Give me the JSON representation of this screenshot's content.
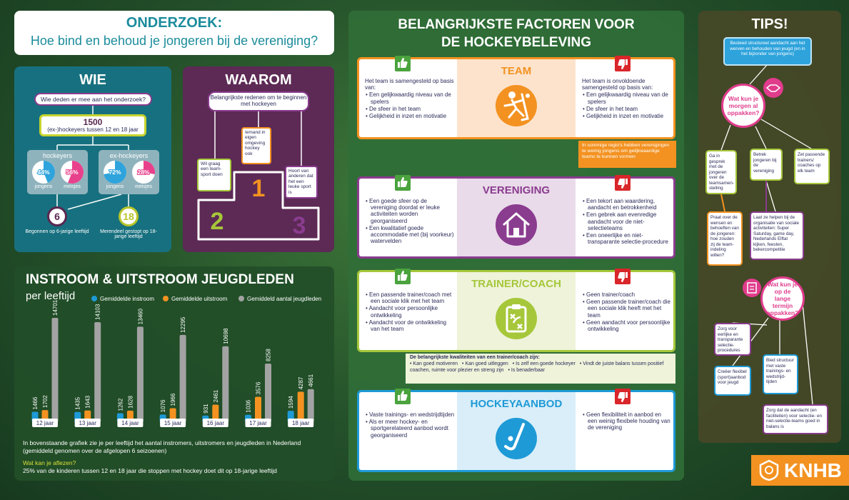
{
  "header": {
    "title": "ONDERZOEK:",
    "subtitle": "Hoe bind en behoud je jongeren bij de vereniging?"
  },
  "wie": {
    "title": "WIE",
    "question": "Wie deden er mee aan het onderzoek?",
    "total": {
      "value": 1500,
      "text": "(ex-)hockeyers tussen 12 en 18 jaar"
    },
    "groups": [
      {
        "title": "hockeyers",
        "stats": [
          {
            "name": "jongens",
            "value": 44,
            "value_label": "44%"
          },
          {
            "name": "meisjes",
            "value": 56,
            "value_label": "56%"
          }
        ]
      },
      {
        "title": "ex-hockeyers",
        "stats": [
          {
            "name": "jongens",
            "value": 72,
            "value_label": "72%"
          },
          {
            "name": "meisjes",
            "value": 28,
            "value_label": "28%"
          }
        ]
      }
    ],
    "ages": [
      {
        "value": 6,
        "text": "Begonnen op 6-jarige leeftijd"
      },
      {
        "value": 18,
        "text": "Merendeel gestopt op 18-jarige leeftijd"
      }
    ]
  },
  "waarom": {
    "title": "WAAROM",
    "question": "Belangrijkste redenen om te beginnen met hockeyen",
    "reasons": [
      {
        "rank": 1,
        "text": "Iemand in eigen omgeving hockey ook"
      },
      {
        "rank": 2,
        "text": "Wil graag een team-sport doen"
      },
      {
        "rank": 3,
        "text": "Hoort van anderen dat het een leuke sport is"
      }
    ]
  },
  "chart_data": {
    "type": "bar",
    "title": "INSTROOM & UITSTROOM JEUGDLEDEN",
    "subtitle": "per leeftijd",
    "categories": [
      "12 jaar",
      "13 jaar",
      "14 jaar",
      "15 jaar",
      "16 jaar",
      "17 jaar",
      "18 jaar"
    ],
    "series": [
      {
        "name": "Gemiddelde instroom",
        "color": "#1e9ad6",
        "values": [
          1466,
          1435,
          1262,
          1076,
          931,
          1036,
          1594
        ]
      },
      {
        "name": "Gemiddelde uitstroom",
        "color": "#f39221",
        "values": [
          1702,
          1643,
          1628,
          1966,
          2461,
          3576,
          4287
        ]
      },
      {
        "name": "Gemiddeld aantal jeugdleden",
        "color": "#a3a3a3",
        "values": [
          14701,
          14103,
          13460,
          12295,
          10698,
          8258,
          4661
        ]
      }
    ],
    "note": "In bovenstaande grafiek zie je per leeftijd het aantal instromers, uitstromers en jeugdleden in Nederland (gemiddeld genomen over de afgelopen 6 seizoenen)",
    "question": "Wat kan je aflezen?",
    "answer": "25% van de kinderen tussen 12 en 18 jaar die stoppen met hockey doet dit op 18-jarige leeftijd"
  },
  "factors": {
    "title": "BELANGRIJKSTE FACTOREN VOOR DE HOCKEYBELEVING",
    "sections": [
      {
        "heading": "TEAM",
        "positive": {
          "intro": "Het team is samengesteld op basis van:",
          "items": [
            "Een gelijkwaardig niveau van de spelers",
            "De sfeer in het team",
            "Gelijkheid in inzet en motivatie"
          ]
        },
        "negative": {
          "intro": "Het team is onvoldoende samengesteld op basis van:",
          "items": [
            "Een gelijkwaardig niveau van de spelers",
            "De sfeer in het team",
            "Gelijkheid in inzet en motivatie"
          ]
        },
        "note": {
          "text": "In sommige regio's hebben verenigingen te weinig jongens om gelijkwaardige teams te kunnen vormen"
        }
      },
      {
        "heading": "VERENIGING",
        "positive": {
          "items": [
            "Een goede sfeer op de vereniging doordat er leuke activiteiten worden georganiseerd",
            "Een kwalitatief goede accommodatie met (bij voorkeur) watervelden"
          ]
        },
        "negative": {
          "items": [
            "Een tekort aan waardering, aandacht en betrokkenheid",
            "Een gebrek aan evenredige aandacht voor de niet-selectieteams",
            "Een oneerlijke en niet-transparante selectie-procedure"
          ]
        }
      },
      {
        "heading": "TRAINER/COACH",
        "positive": {
          "items": [
            "Een passende trainer/coach met een sociale klik met het team",
            "Aandacht voor persoonlijke ontwikkeling",
            "Aandacht voor de ontwikkeling van het team"
          ]
        },
        "negative": {
          "items": [
            "Geen trainer/coach",
            "Geen passende trainer/coach die een sociale klik heeft met het team",
            "Geen aandacht voor persoonlijke ontwikkeling"
          ]
        },
        "note": {
          "title": "De belangrijkste kwaliteiten van een trainer/coach zijn:",
          "items": [
            "Kan goed motiveren",
            "Kan goed uitleggen",
            "Is zelf een goede hockeyer",
            "Vindt de juiste balans tussen positief coachen, ruimte voor plezier en streng zijn",
            "Is benaderbaar"
          ]
        }
      },
      {
        "heading": "HOCKEYAANBOD",
        "positive": {
          "items": [
            "Vaste trainings- en wedstrijdtijden",
            "Als er meer hockey- en sportgerelateerd aanbod wordt georganiseerd"
          ]
        },
        "negative": {
          "items": [
            "Geen flexibiliteit in aanbod en een weinig flexibele houding van de vereniging"
          ]
        }
      }
    ]
  },
  "tips": {
    "title": "TIPS!",
    "intro": "Besteed structureel aandacht aan het werven en behouden van jeugd (en in het bijzonder van jongens)",
    "short_term": {
      "question": "Wat kun je morgen al oppakken?",
      "items": [
        "Ga in gesprek met de jongeren over de teamsamen-stelling",
        "Betrek jongeren bij de vereniging",
        "Zet passende trainers/ coaches op elk team"
      ],
      "details": [
        "Praat over de wensen en behoeften van de jongeren: hoe zouden zij de team-indeling willen?",
        "Laat ze helpen bij de organisatie van sociale activiteiten: Super Saturday, game day, Nederlands Elftal kijken, feesten, bekercompetitie"
      ]
    },
    "long_term": {
      "question": "Wat kun je op de lange termijn oppakken?",
      "items": [
        "Zorg voor eerlijke en transparante selectie-procedures",
        "Creëer flexibel (sport)aanbod voor jeugd",
        "Bied structuur met vaste trainings- en wedstrijd-tijden",
        "Zorg dat de aandacht (en faciliteiten) voor selectie- en niet-selectie-teams goed in balans is"
      ]
    }
  },
  "logo": {
    "text": "KNHB"
  }
}
